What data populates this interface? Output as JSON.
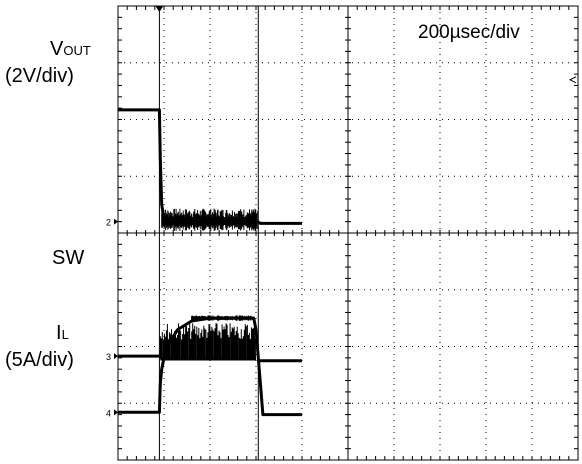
{
  "chart_data": {
    "type": "line",
    "title": "",
    "timebase": "200µsec/div",
    "grid": true,
    "divisions": {
      "x": 10,
      "y": 8
    },
    "xlim": [
      0,
      10
    ],
    "x_unit": "div",
    "channels": [
      {
        "key": "vout",
        "label_main": "V",
        "label_sub": "OUT",
        "scale": "(2V/div)",
        "ground_marker": "2",
        "color": "#000000",
        "trace": {
          "x": [
            0,
            0.9,
            0.92,
            0.95,
            1.0,
            1.1,
            3.03,
            3.1,
            4.0
          ],
          "y": [
            6.17,
            6.17,
            5.3,
            4.5,
            4.25,
            4.2,
            4.2,
            4.17,
            4.17
          ],
          "noise_x_range": [
            0.95,
            3.03
          ],
          "noise_amp": 0.33
        }
      },
      {
        "key": "sw",
        "label_main": "SW",
        "label_sub": "",
        "scale": "",
        "ground_marker": "3",
        "color": "#000000",
        "trace": {
          "baseline": 1.83,
          "high": 2.42,
          "burst_x_range": [
            0.92,
            3.0
          ],
          "burst_period": 0.022,
          "before_x_range": [
            0,
            0.9
          ],
          "after_x_range": [
            3.05,
            4.0
          ]
        }
      },
      {
        "key": "il",
        "label_main": "I",
        "label_sub": "L",
        "scale": "(5A/div)",
        "ground_marker": "4",
        "color": "#000000",
        "trace": {
          "x": [
            0,
            0.9,
            0.92,
            0.95,
            1.0,
            1.1,
            1.3,
            1.6,
            2.0,
            2.95,
            3.0,
            3.1,
            3.15,
            4.0
          ],
          "y": [
            0.84,
            0.84,
            1.35,
            1.6,
            1.8,
            2.05,
            2.3,
            2.45,
            2.5,
            2.5,
            2.3,
            1.3,
            0.8,
            0.8
          ],
          "noise_amp": 0.05
        }
      }
    ]
  }
}
